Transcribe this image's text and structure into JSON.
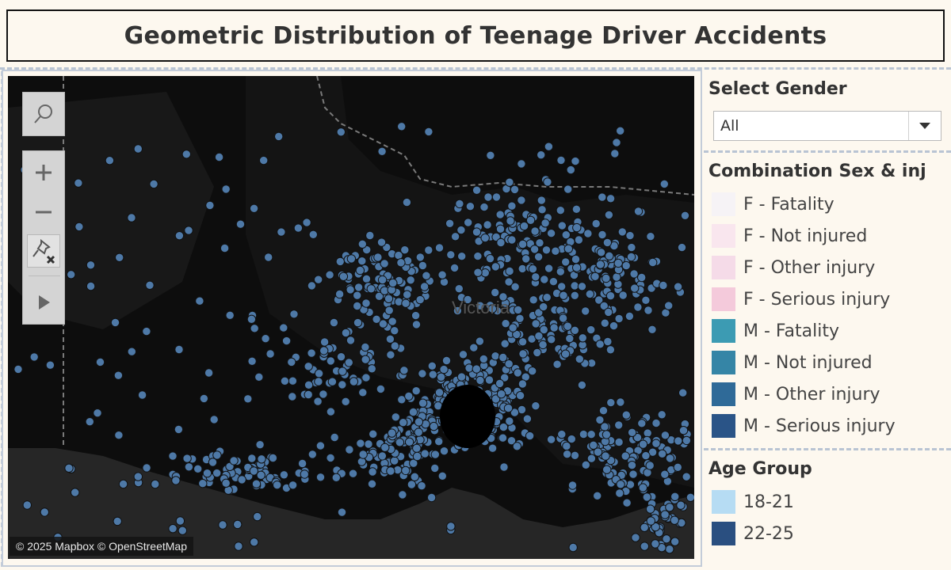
{
  "title": "Geometric Distribution of Teenage Driver Accidents",
  "map": {
    "place_label": "Victoria",
    "attribution": "© 2025 Mapbox © OpenStreetMap",
    "point_color": "#4e79a7"
  },
  "toolbar": {
    "search": "search-icon",
    "zoom_in": "zoom-in-icon",
    "zoom_out": "zoom-out-icon",
    "reset": "unpin-icon",
    "play": "play-icon"
  },
  "filter": {
    "label": "Select Gender",
    "value": "All"
  },
  "legend_sex_injury": {
    "label": "Combination Sex & inj",
    "items": [
      {
        "text": "F - Fatality",
        "color": "#f6f3f6"
      },
      {
        "text": "F - Not injured",
        "color": "#f9e6ee"
      },
      {
        "text": "F - Other injury",
        "color": "#f5dbe8"
      },
      {
        "text": "F - Serious injury",
        "color": "#f4cadb"
      },
      {
        "text": "M - Fatality",
        "color": "#3c9bb3"
      },
      {
        "text": "M - Not injured",
        "color": "#3585a6"
      },
      {
        "text": "M - Other injury",
        "color": "#2f6a98"
      },
      {
        "text": "M - Serious injury",
        "color": "#2a5487"
      }
    ]
  },
  "legend_age": {
    "label": "Age Group",
    "items": [
      {
        "text": "18-21",
        "color": "#b6dcf3"
      },
      {
        "text": "22-25",
        "color": "#2a4f80"
      }
    ]
  }
}
